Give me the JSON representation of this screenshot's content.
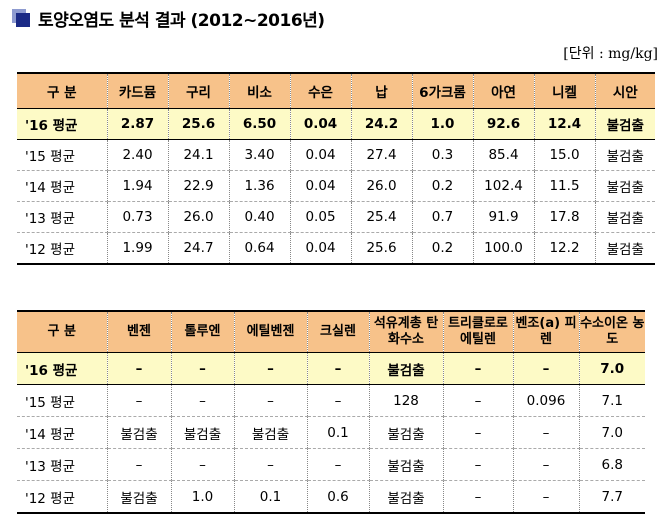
{
  "title": "토양오염도 분석 결과 (2012~2016년)",
  "unit": "[단위 : mg/kg]",
  "table1": {
    "headers": [
      "구 분",
      "카드뮴",
      "구리",
      "비소",
      "수은",
      "납",
      "6가크롬",
      "아연",
      "니켈",
      "시안"
    ],
    "rows": [
      [
        "'16 평균",
        "2.87",
        "25.6",
        "6.50",
        "0.04",
        "24.2",
        "1.0",
        "92.6",
        "12.4",
        "불검출"
      ],
      [
        "'15 평균",
        "2.40",
        "24.1",
        "3.40",
        "0.04",
        "27.4",
        "0.3",
        "85.4",
        "15.0",
        "불검출"
      ],
      [
        "'14 평균",
        "1.94",
        "22.9",
        "1.36",
        "0.04",
        "26.0",
        "0.2",
        "102.4",
        "11.5",
        "불검출"
      ],
      [
        "'13 평균",
        "0.73",
        "26.0",
        "0.40",
        "0.05",
        "25.4",
        "0.7",
        "91.9",
        "17.8",
        "불검출"
      ],
      [
        "'12 평균",
        "1.99",
        "24.7",
        "0.64",
        "0.04",
        "25.6",
        "0.2",
        "100.0",
        "12.2",
        "불검출"
      ]
    ]
  },
  "table2": {
    "headers": [
      "구 분",
      "벤젠",
      "톨루엔",
      "에틸벤젠",
      "크실렌",
      "석유계총 탄화수소",
      "트리클로로 에틸렌",
      "벤조(a) 피렌",
      "수소이온 농도"
    ],
    "rows": [
      [
        "'16 평균",
        "–",
        "–",
        "–",
        "–",
        "불검출",
        "–",
        "–",
        "7.0"
      ],
      [
        "'15 평균",
        "–",
        "–",
        "–",
        "–",
        "128",
        "–",
        "0.096",
        "7.1"
      ],
      [
        "'14 평균",
        "불검출",
        "불검출",
        "불검출",
        "0.1",
        "불검출",
        "–",
        "–",
        "7.0"
      ],
      [
        "'13 평균",
        "–",
        "–",
        "–",
        "–",
        "불검출",
        "–",
        "–",
        "6.8"
      ],
      [
        "'12 평균",
        "불검출",
        "1.0",
        "0.1",
        "0.6",
        "불검출",
        "–",
        "–",
        "7.7"
      ]
    ]
  }
}
